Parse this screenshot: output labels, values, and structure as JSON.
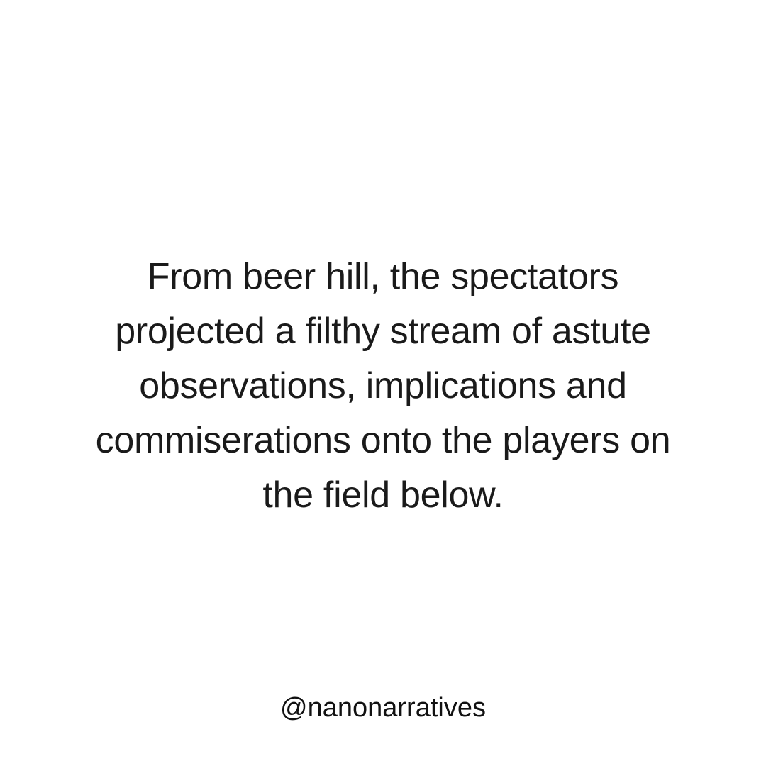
{
  "post": {
    "story_lines": [
      "From beer hill, the spectators",
      "projected a filthy stream of astute",
      "observations, implications and",
      "commiserations onto the players on",
      "the field below."
    ],
    "handle": "@nanonarratives"
  },
  "colors": {
    "background": "#ffffff",
    "text": "#1a1a1a"
  }
}
